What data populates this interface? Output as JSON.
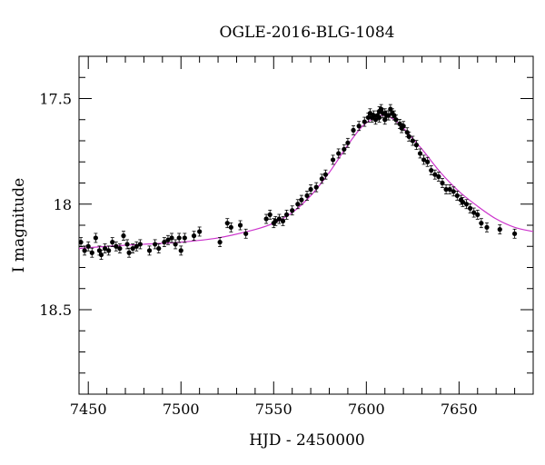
{
  "chart_data": {
    "type": "scatter",
    "title": "OGLE-2016-BLG-1084",
    "xlabel": "HJD - 2450000",
    "ylabel": "I magnitude",
    "xlim": [
      7445,
      7690
    ],
    "ylim": [
      18.9,
      17.3
    ],
    "y_inverted": true,
    "grid": false,
    "legend": "none",
    "xticks": [
      7450,
      7500,
      7550,
      7600,
      7650
    ],
    "xtick_labels": [
      "7450",
      "7500",
      "7550",
      "7600",
      "7650"
    ],
    "yticks": [
      17.5,
      18,
      18.5
    ],
    "ytick_labels": [
      "17.5",
      "18",
      "18.5"
    ],
    "colors": {
      "points": "#000000",
      "model": "#cc33cc"
    },
    "model_curve": {
      "x": [
        7445,
        7460,
        7480,
        7500,
        7520,
        7540,
        7550,
        7560,
        7570,
        7580,
        7590,
        7598,
        7605,
        7610,
        7615,
        7620,
        7630,
        7640,
        7650,
        7660,
        7670,
        7680,
        7690
      ],
      "y": [
        18.21,
        18.2,
        18.19,
        18.18,
        18.16,
        18.12,
        18.09,
        18.04,
        17.96,
        17.85,
        17.72,
        17.63,
        17.59,
        17.58,
        17.6,
        17.64,
        17.74,
        17.85,
        17.94,
        18.01,
        18.07,
        18.11,
        18.13
      ]
    },
    "series": [
      {
        "x": [
          7446,
          7448,
          7450,
          7452,
          7454,
          7456,
          7457,
          7459,
          7461,
          7463,
          7465,
          7467,
          7469,
          7471,
          7472,
          7474,
          7476,
          7478,
          7483,
          7486,
          7488,
          7491,
          7493,
          7495,
          7497,
          7499,
          7500,
          7502,
          7507,
          7510,
          7521,
          7525,
          7527,
          7532,
          7535,
          7546,
          7548,
          7550,
          7551,
          7553,
          7555,
          7557,
          7560,
          7563,
          7565,
          7568,
          7570,
          7573,
          7576,
          7578,
          7582,
          7585,
          7588,
          7590,
          7593,
          7596,
          7599,
          7601,
          7602,
          7603,
          7604,
          7605,
          7606,
          7607,
          7607,
          7608,
          7609,
          7610,
          7610,
          7611,
          7612,
          7613,
          7614,
          7615,
          7616,
          7618,
          7619,
          7620,
          7622,
          7623,
          7625,
          7627,
          7629,
          7631,
          7633,
          7635,
          7637,
          7639,
          7641,
          7643,
          7645,
          7647,
          7649,
          7651,
          7652,
          7654,
          7656,
          7658,
          7660,
          7662,
          7665,
          7672,
          7680
        ],
        "y": [
          18.18,
          18.22,
          18.2,
          18.23,
          18.16,
          18.22,
          18.24,
          18.21,
          18.22,
          18.18,
          18.2,
          18.21,
          18.15,
          18.19,
          18.23,
          18.21,
          18.2,
          18.19,
          18.22,
          18.19,
          18.21,
          18.18,
          18.17,
          18.16,
          18.19,
          18.16,
          18.22,
          18.16,
          18.15,
          18.13,
          18.18,
          18.09,
          18.11,
          18.1,
          18.14,
          18.07,
          18.05,
          18.09,
          18.08,
          18.07,
          18.08,
          18.05,
          18.03,
          18.0,
          17.98,
          17.96,
          17.93,
          17.92,
          17.88,
          17.86,
          17.79,
          17.76,
          17.74,
          17.71,
          17.65,
          17.63,
          17.61,
          17.59,
          17.57,
          17.59,
          17.58,
          17.6,
          17.58,
          17.56,
          17.59,
          17.55,
          17.57,
          17.57,
          17.6,
          17.58,
          17.58,
          17.55,
          17.57,
          17.58,
          17.6,
          17.62,
          17.64,
          17.63,
          17.66,
          17.68,
          17.7,
          17.72,
          17.76,
          17.79,
          17.8,
          17.84,
          17.86,
          17.87,
          17.9,
          17.93,
          17.93,
          17.94,
          17.96,
          17.98,
          17.99,
          18.0,
          18.02,
          18.04,
          18.05,
          18.09,
          18.11,
          18.12,
          18.14
        ]
      }
    ]
  }
}
